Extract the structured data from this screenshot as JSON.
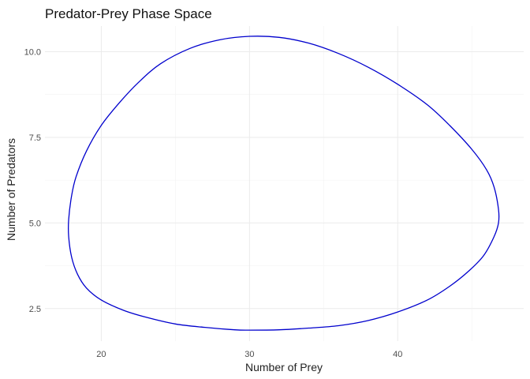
{
  "chart_data": {
    "type": "line",
    "title": "Predator-Prey Phase Space",
    "xlabel": "Number of Prey",
    "ylabel": "Number of Predators",
    "xlim": [
      16.2,
      48.5
    ],
    "ylim": [
      1.55,
      10.75
    ],
    "x_ticks": [
      20,
      30,
      40
    ],
    "x_tick_labels": [
      "20",
      "30",
      "40"
    ],
    "x_minor_ticks": [
      25,
      35,
      45
    ],
    "y_ticks": [
      2.5,
      5.0,
      7.5,
      10.0
    ],
    "y_tick_labels": [
      "2.5",
      "5.0",
      "7.5",
      "10.0"
    ],
    "y_minor_ticks": [
      3.75,
      6.25,
      8.75
    ],
    "grid": true,
    "line_color": "#0000cd",
    "series": [
      {
        "x": [
          30.0,
          28.0,
          26.0,
          24.0,
          22.5,
          21.2,
          20.0,
          19.0,
          18.3,
          18.0,
          17.8,
          17.8,
          18.0,
          18.4,
          19.0,
          20.0,
          21.5,
          23.0,
          25.0,
          27.0,
          29.0,
          30.0,
          32.0,
          34.0,
          36.0,
          38.0,
          40.0,
          42.0,
          43.5,
          44.8,
          45.8,
          46.5,
          46.8,
          46.8,
          46.5,
          46.0,
          45.0,
          43.5,
          42.0,
          40.0,
          38.0,
          36.0,
          34.0,
          32.0,
          30.0
        ],
        "y": [
          10.45,
          10.35,
          10.1,
          9.65,
          9.1,
          8.5,
          7.85,
          7.1,
          6.35,
          5.8,
          5.1,
          4.6,
          4.0,
          3.5,
          3.1,
          2.75,
          2.45,
          2.25,
          2.05,
          1.95,
          1.88,
          1.87,
          1.88,
          1.93,
          2.0,
          2.15,
          2.4,
          2.75,
          3.15,
          3.6,
          4.05,
          4.6,
          5.0,
          5.4,
          6.05,
          6.55,
          7.15,
          7.85,
          8.45,
          9.05,
          9.55,
          9.95,
          10.25,
          10.42,
          10.45
        ]
      }
    ]
  }
}
